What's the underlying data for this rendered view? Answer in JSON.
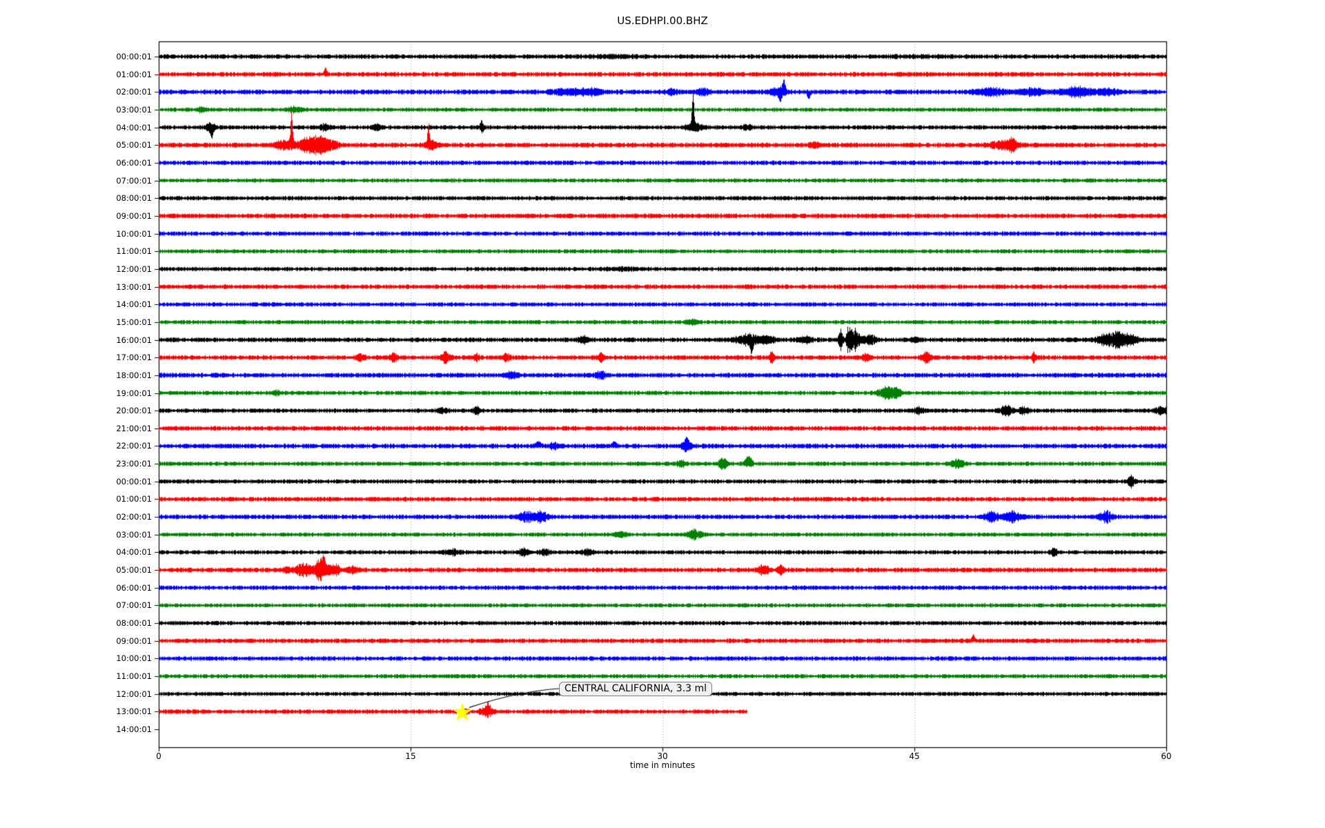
{
  "title": "US.EDHPI.00.BHZ",
  "chart_data": {
    "type": "line",
    "subtype": "seismogram-helicorder-dayplot",
    "title": "US.EDHPI.00.BHZ",
    "xlabel": "time in minutes",
    "xlim": [
      0,
      60
    ],
    "x_ticks": [
      0,
      15,
      30,
      45,
      60
    ],
    "x_tick_labels": [
      "0",
      "15",
      "30",
      "45",
      "60"
    ],
    "grid_minutes": [
      15,
      30,
      45
    ],
    "grid_style": "dotted-vertical",
    "trace_color_cycle": [
      "#000000",
      "#ff0000",
      "#0000ff",
      "#008000"
    ],
    "annotation": {
      "text": "CENTRAL CALIFORNIA, 3.3 ml",
      "row_label": "13:00:01",
      "minute": 18,
      "marker": "star",
      "marker_color": "#ffff00"
    },
    "rows": [
      {
        "label": "00:00:01",
        "color": "#000000",
        "amp": 3.1,
        "events": [
          [
            27,
            1.5,
            1.2
          ],
          [
            45,
            2,
            0.8
          ]
        ]
      },
      {
        "label": "01:00:01",
        "color": "#ff0000",
        "amp": 3.2,
        "events": [
          [
            9.9,
            0.1,
            7,
            1
          ]
        ]
      },
      {
        "label": "02:00:01",
        "color": "#0000ff",
        "amp": 3.3,
        "events": [
          [
            24.3,
            0.9,
            4
          ],
          [
            25.8,
            0.7,
            4
          ],
          [
            30.5,
            0.4,
            3
          ],
          [
            32.4,
            0.4,
            5
          ],
          [
            36.8,
            0.5,
            6
          ],
          [
            37.2,
            0.1,
            15,
            1
          ],
          [
            37,
            0.12,
            8,
            -1
          ],
          [
            38.7,
            0.1,
            9,
            -1
          ],
          [
            49.5,
            1,
            5
          ],
          [
            52,
            0.8,
            4
          ],
          [
            54.6,
            1,
            6
          ],
          [
            56.5,
            0.7,
            4
          ]
        ]
      },
      {
        "label": "03:00:01",
        "color": "#008000",
        "amp": 2.8,
        "events": [
          [
            2.5,
            0.3,
            3
          ],
          [
            8.1,
            0.4,
            4
          ]
        ]
      },
      {
        "label": "04:00:01",
        "color": "#000000",
        "amp": 3.0,
        "events": [
          [
            3.1,
            0.25,
            7
          ],
          [
            3.15,
            0.08,
            13,
            -1
          ],
          [
            9.9,
            0.3,
            4
          ],
          [
            12.9,
            0.25,
            4
          ],
          [
            19.2,
            0.1,
            8,
            1
          ],
          [
            19.25,
            0.1,
            6,
            -1
          ],
          [
            31.8,
            0.08,
            50,
            1
          ],
          [
            31.9,
            0.5,
            5
          ],
          [
            35,
            0.3,
            3
          ]
        ]
      },
      {
        "label": "05:00:01",
        "color": "#ff0000",
        "amp": 3.3,
        "events": [
          [
            7.5,
            0.6,
            6
          ],
          [
            7.9,
            0.08,
            44,
            1
          ],
          [
            8.8,
            0.6,
            9
          ],
          [
            9.5,
            0.5,
            12
          ],
          [
            10.3,
            0.4,
            6
          ],
          [
            16.05,
            0.07,
            27,
            1
          ],
          [
            16.2,
            0.35,
            6
          ],
          [
            39,
            0.3,
            3
          ],
          [
            50,
            0.5,
            5
          ],
          [
            50.8,
            0.35,
            9
          ]
        ]
      },
      {
        "label": "06:00:01",
        "color": "#0000ff",
        "amp": 3.1,
        "events": []
      },
      {
        "label": "07:00:01",
        "color": "#008000",
        "amp": 2.8,
        "events": []
      },
      {
        "label": "08:00:01",
        "color": "#000000",
        "amp": 3.0,
        "events": []
      },
      {
        "label": "09:00:01",
        "color": "#ff0000",
        "amp": 3.2,
        "events": []
      },
      {
        "label": "10:00:01",
        "color": "#0000ff",
        "amp": 3.0,
        "events": []
      },
      {
        "label": "11:00:01",
        "color": "#008000",
        "amp": 2.8,
        "events": []
      },
      {
        "label": "12:00:01",
        "color": "#000000",
        "amp": 2.9,
        "events": [
          [
            27.5,
            1,
            1.5
          ]
        ]
      },
      {
        "label": "13:00:01",
        "color": "#ff0000",
        "amp": 3.1,
        "events": []
      },
      {
        "label": "14:00:01",
        "color": "#0000ff",
        "amp": 2.9,
        "events": []
      },
      {
        "label": "15:00:01",
        "color": "#008000",
        "amp": 2.8,
        "events": [
          [
            31.7,
            0.3,
            3
          ]
        ]
      },
      {
        "label": "16:00:01",
        "color": "#000000",
        "amp": 3.2,
        "events": [
          [
            25.3,
            0.3,
            4
          ],
          [
            35,
            0.7,
            7
          ],
          [
            35.3,
            0.08,
            18,
            -1
          ],
          [
            36.2,
            0.5,
            5
          ],
          [
            38.5,
            0.4,
            4
          ],
          [
            40.6,
            0.12,
            20
          ],
          [
            41.1,
            0.15,
            24
          ],
          [
            41.5,
            0.25,
            16
          ],
          [
            42.3,
            0.4,
            7
          ],
          [
            45,
            0.3,
            4
          ],
          [
            56.4,
            0.5,
            8
          ],
          [
            57.1,
            0.35,
            11
          ],
          [
            57.8,
            0.5,
            7
          ]
        ]
      },
      {
        "label": "17:00:01",
        "color": "#ff0000",
        "amp": 3.2,
        "events": [
          [
            12,
            0.25,
            5
          ],
          [
            14,
            0.22,
            6
          ],
          [
            17.1,
            0.28,
            7
          ],
          [
            18.9,
            0.2,
            5
          ],
          [
            20.7,
            0.22,
            5
          ],
          [
            26.3,
            0.18,
            5
          ],
          [
            36.5,
            0.12,
            8
          ],
          [
            42.1,
            0.18,
            6
          ],
          [
            45.7,
            0.28,
            7
          ],
          [
            52.1,
            0.14,
            6
          ]
        ]
      },
      {
        "label": "18:00:01",
        "color": "#0000ff",
        "amp": 3.3,
        "events": [
          [
            21,
            0.4,
            4
          ],
          [
            26.3,
            0.3,
            5
          ]
        ]
      },
      {
        "label": "19:00:01",
        "color": "#008000",
        "amp": 2.9,
        "events": [
          [
            7,
            0.3,
            3
          ],
          [
            43.3,
            0.5,
            8
          ],
          [
            43.9,
            0.3,
            6
          ]
        ]
      },
      {
        "label": "20:00:01",
        "color": "#000000",
        "amp": 3.0,
        "events": [
          [
            16.9,
            0.3,
            4
          ],
          [
            18.9,
            0.22,
            5
          ],
          [
            45.2,
            0.28,
            5
          ],
          [
            50.5,
            0.4,
            6
          ],
          [
            51.5,
            0.3,
            5
          ],
          [
            59.7,
            0.3,
            6
          ]
        ]
      },
      {
        "label": "21:00:01",
        "color": "#ff0000",
        "amp": 3.2,
        "events": []
      },
      {
        "label": "22:00:01",
        "color": "#0000ff",
        "amp": 3.3,
        "events": [
          [
            22.6,
            0.2,
            5,
            1
          ],
          [
            23.5,
            0.2,
            4
          ],
          [
            27.1,
            0.15,
            5,
            1
          ],
          [
            31.4,
            0.3,
            7
          ],
          [
            31.45,
            0.1,
            7,
            1
          ]
        ]
      },
      {
        "label": "23:00:01",
        "color": "#008000",
        "amp": 2.9,
        "events": [
          [
            31.1,
            0.25,
            5
          ],
          [
            33.6,
            0.3,
            7
          ],
          [
            35.1,
            0.2,
            8,
            1
          ],
          [
            35.15,
            0.2,
            4
          ],
          [
            47.6,
            0.4,
            6
          ]
        ]
      },
      {
        "label": "00:00:01",
        "color": "#000000",
        "amp": 2.9,
        "events": [
          [
            57.9,
            0.2,
            9
          ]
        ]
      },
      {
        "label": "01:00:01",
        "color": "#ff0000",
        "amp": 3.1,
        "events": []
      },
      {
        "label": "02:00:01",
        "color": "#0000ff",
        "amp": 3.2,
        "events": [
          [
            21.9,
            0.5,
            7
          ],
          [
            22.8,
            0.4,
            7
          ],
          [
            49.6,
            0.4,
            7
          ],
          [
            50.8,
            0.5,
            7
          ],
          [
            56.4,
            0.35,
            8
          ]
        ]
      },
      {
        "label": "03:00:01",
        "color": "#008000",
        "amp": 2.8,
        "events": [
          [
            27.5,
            0.4,
            3
          ],
          [
            31.9,
            0.4,
            6
          ]
        ]
      },
      {
        "label": "04:00:01",
        "color": "#000000",
        "amp": 2.9,
        "events": [
          [
            17.5,
            0.4,
            4
          ],
          [
            21.7,
            0.3,
            5
          ],
          [
            23,
            0.3,
            4
          ],
          [
            25.5,
            0.3,
            4
          ],
          [
            53.3,
            0.2,
            5
          ]
        ]
      },
      {
        "label": "05:00:01",
        "color": "#ff0000",
        "amp": 3.2,
        "events": [
          [
            7.6,
            0.2,
            4
          ],
          [
            8.6,
            0.5,
            9
          ],
          [
            9.6,
            0.35,
            14
          ],
          [
            9.8,
            0.1,
            16,
            1
          ],
          [
            10.4,
            0.4,
            7
          ],
          [
            11.5,
            0.4,
            4
          ],
          [
            36,
            0.3,
            7
          ],
          [
            37,
            0.25,
            6
          ]
        ]
      },
      {
        "label": "06:00:01",
        "color": "#0000ff",
        "amp": 3.0,
        "events": []
      },
      {
        "label": "07:00:01",
        "color": "#008000",
        "amp": 2.8,
        "events": []
      },
      {
        "label": "08:00:01",
        "color": "#000000",
        "amp": 2.9,
        "events": []
      },
      {
        "label": "09:00:01",
        "color": "#ff0000",
        "amp": 3.1,
        "events": [
          [
            48.5,
            0.1,
            8,
            1
          ]
        ]
      },
      {
        "label": "10:00:01",
        "color": "#0000ff",
        "amp": 3.0,
        "events": []
      },
      {
        "label": "11:00:01",
        "color": "#008000",
        "amp": 2.8,
        "events": []
      },
      {
        "label": "12:00:01",
        "color": "#000000",
        "amp": 2.8,
        "events": []
      },
      {
        "label": "13:00:01",
        "color": "#ff0000",
        "amp": 3.0,
        "len": 35,
        "events": [
          [
            18.3,
            0.15,
            4
          ],
          [
            19.5,
            0.35,
            8
          ],
          [
            19.6,
            0.12,
            6,
            1
          ]
        ]
      },
      {
        "label": "14:00:01",
        "trace": false
      }
    ]
  }
}
